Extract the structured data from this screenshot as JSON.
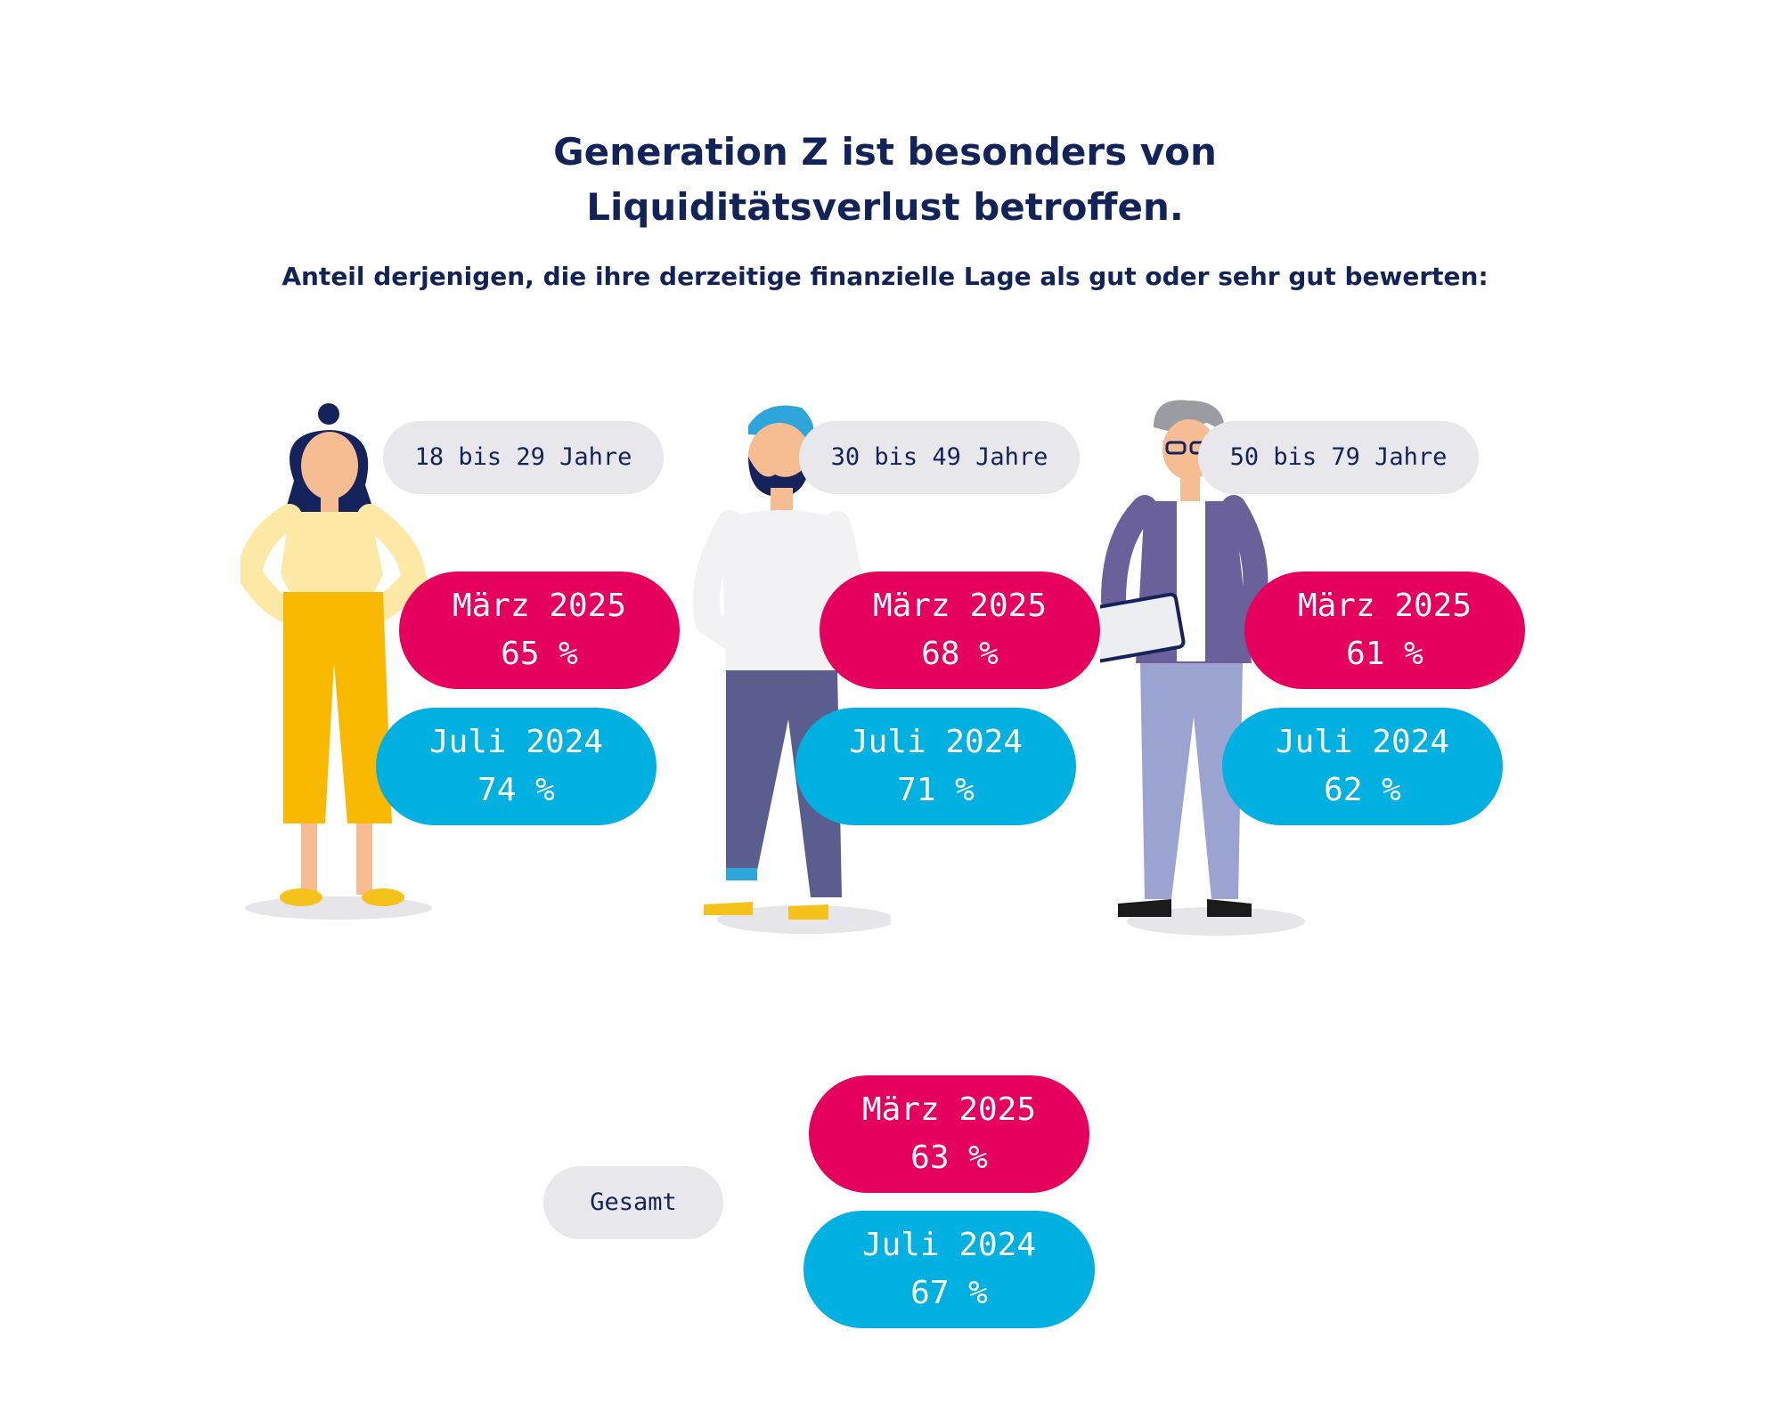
{
  "title_lines": [
    "Generation Z ist besonders von",
    "Liquiditätsverlust betroffen."
  ],
  "subtitle": "Anteil derjenigen, die ihre derzeitige finanzielle Lage als gut oder sehr gut bewerten:",
  "colors": {
    "maerz": "#e5005e",
    "juli": "#00b0e0",
    "label_bg": "#e8e8ec",
    "text": "#12235a"
  },
  "chart_data": {
    "type": "bar",
    "categories": [
      "18 bis 29 Jahre",
      "30 bis 49 Jahre",
      "50 bis 79 Jahre",
      "Gesamt"
    ],
    "series": [
      {
        "name": "März 2025",
        "values": [
          65,
          68,
          61,
          63
        ],
        "display": [
          "65 %",
          "68 %",
          "61 %",
          "63 %"
        ]
      },
      {
        "name": "Juli 2024",
        "values": [
          74,
          71,
          62,
          67
        ],
        "display": [
          "74 %",
          "71 %",
          "62 %",
          "67 %"
        ]
      }
    ]
  }
}
